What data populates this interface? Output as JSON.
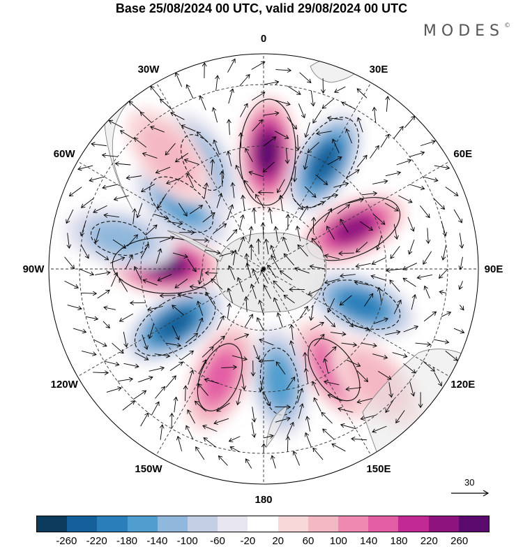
{
  "title": "Base 25/08/2024 00 UTC, valid 29/08/2024 00 UTC",
  "brand": "MODES",
  "brand_mark": "©",
  "map": {
    "projection": "south-polar-stereographic",
    "longitude_labels": [
      {
        "text": "0",
        "lon": 0
      },
      {
        "text": "30E",
        "lon": 30
      },
      {
        "text": "60E",
        "lon": 60
      },
      {
        "text": "90E",
        "lon": 90
      },
      {
        "text": "120E",
        "lon": 120
      },
      {
        "text": "150E",
        "lon": 150
      },
      {
        "text": "180",
        "lon": 180
      },
      {
        "text": "150W",
        "lon": -150
      },
      {
        "text": "120W",
        "lon": -120
      },
      {
        "text": "90W",
        "lon": -90
      },
      {
        "text": "60W",
        "lon": -60
      },
      {
        "text": "30W",
        "lon": -30
      }
    ],
    "anomaly_centers": [
      {
        "lon": 2,
        "lat": -52,
        "value": 270
      },
      {
        "lon": 30,
        "lat": -50,
        "value": -250
      },
      {
        "lon": 66,
        "lat": -58,
        "value": 250
      },
      {
        "lon": 110,
        "lat": -56,
        "value": -190
      },
      {
        "lon": 145,
        "lat": -50,
        "value": 160
      },
      {
        "lon": 172,
        "lat": -53,
        "value": -150
      },
      {
        "lon": -158,
        "lat": -52,
        "value": 160
      },
      {
        "lon": -122,
        "lat": -56,
        "value": -220
      },
      {
        "lon": -88,
        "lat": -58,
        "value": 270
      },
      {
        "lon": -52,
        "lat": -56,
        "value": -170
      },
      {
        "lon": -78,
        "lat": -42,
        "value": -120
      },
      {
        "lon": -30,
        "lat": -50,
        "value": -130
      },
      {
        "lon": -40,
        "lat": -42,
        "value": 70
      },
      {
        "lon": 135,
        "lat": -38,
        "value": 60
      }
    ]
  },
  "reference_vector": {
    "label": "30"
  },
  "colorbar": {
    "colors": [
      "#0d3b5e",
      "#13609a",
      "#2a7fba",
      "#4f9ecf",
      "#8fb8dc",
      "#c4cfe6",
      "#e7e5f0",
      "#ffffff",
      "#f9d8da",
      "#f4b8c4",
      "#ee89b1",
      "#e35da5",
      "#c22a93",
      "#8e137f",
      "#5b0b6e"
    ],
    "ticks": [
      "-260",
      "-220",
      "-180",
      "-140",
      "-100",
      "-60",
      "-20",
      "20",
      "60",
      "100",
      "140",
      "180",
      "220",
      "260"
    ]
  }
}
